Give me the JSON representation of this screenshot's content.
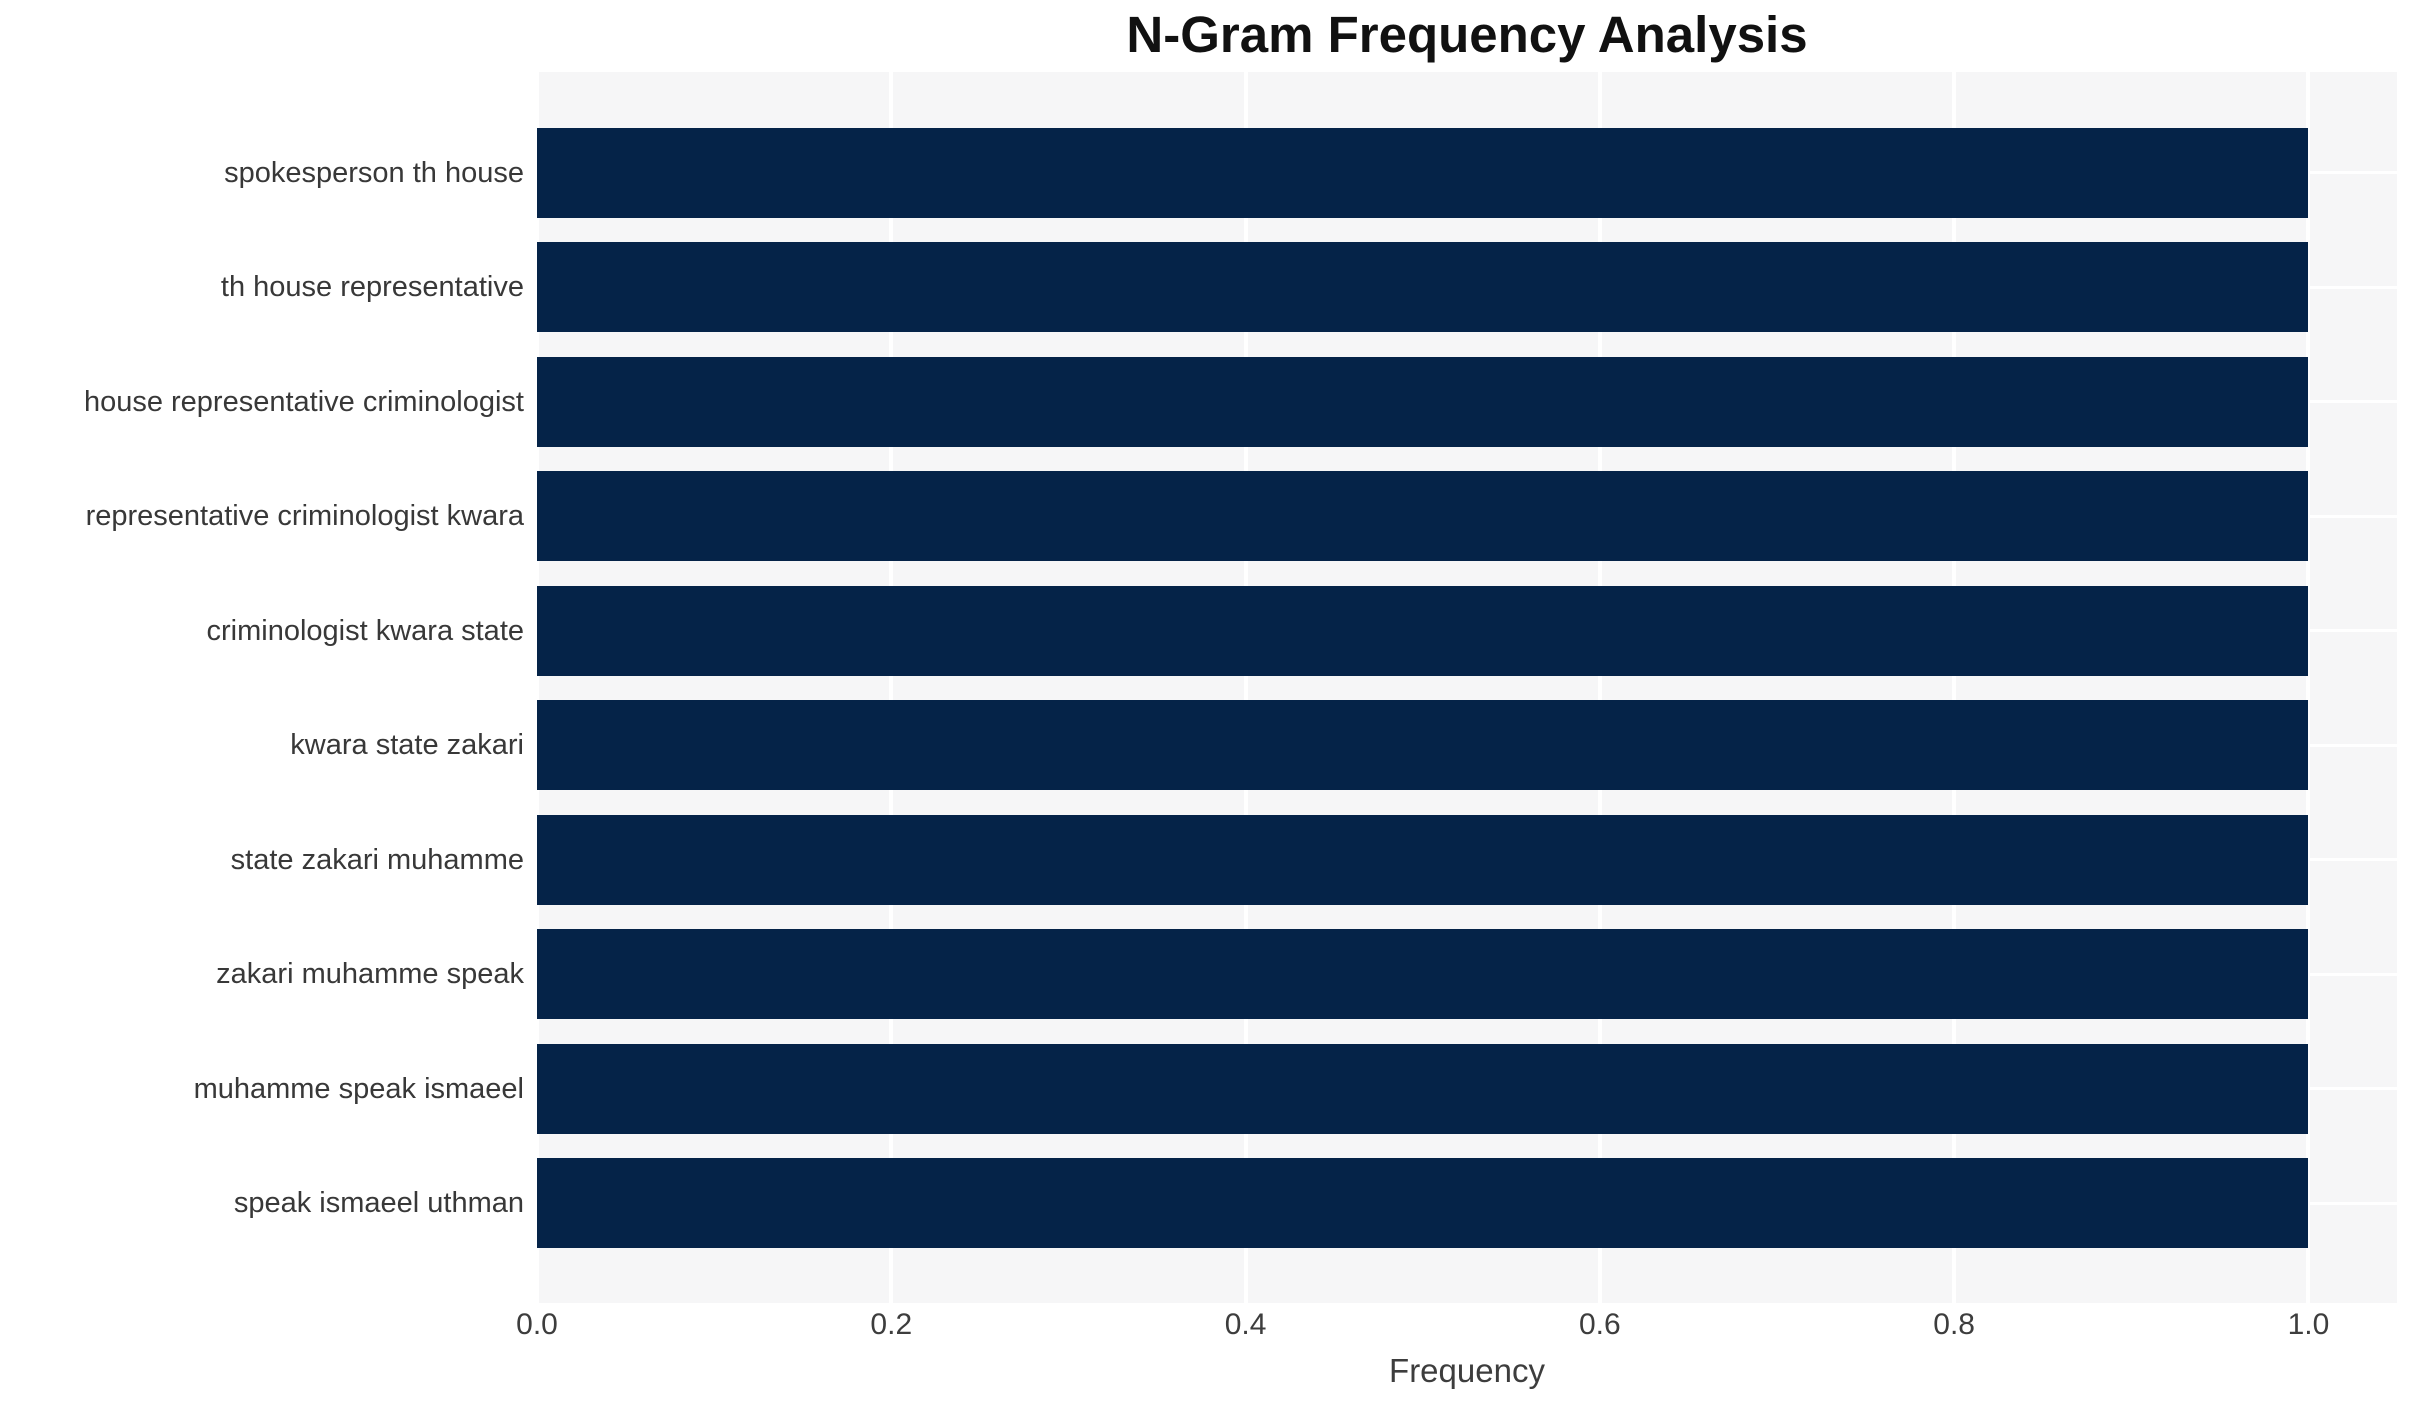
{
  "title": "N-Gram Frequency Analysis",
  "chart_data": {
    "type": "bar",
    "orientation": "horizontal",
    "title": "N-Gram Frequency Analysis",
    "xlabel": "Frequency",
    "ylabel": "",
    "categories": [
      "spokesperson th house",
      "th house representative",
      "house representative criminologist",
      "representative criminologist kwara",
      "criminologist kwara state",
      "kwara state zakari",
      "state zakari muhamme",
      "zakari muhamme speak",
      "muhamme speak ismaeel",
      "speak ismaeel uthman"
    ],
    "values": [
      1.0,
      1.0,
      1.0,
      1.0,
      1.0,
      1.0,
      1.0,
      1.0,
      1.0,
      1.0
    ],
    "xlim": [
      0,
      1.05
    ],
    "x_ticks": [
      {
        "value": 0.0,
        "label": "0.0"
      },
      {
        "value": 0.2,
        "label": "0.2"
      },
      {
        "value": 0.4,
        "label": "0.4"
      },
      {
        "value": 0.6,
        "label": "0.6"
      },
      {
        "value": 0.8,
        "label": "0.8"
      },
      {
        "value": 1.0,
        "label": "1.0"
      }
    ],
    "grid": true,
    "legend": "none",
    "colors": {
      "bar": "#052348",
      "plot_background": "#f6f6f7",
      "gridline": "#ffffff",
      "title_text": "#111111",
      "tick_text": "#3d3d3d",
      "category_text": "#383838"
    }
  }
}
